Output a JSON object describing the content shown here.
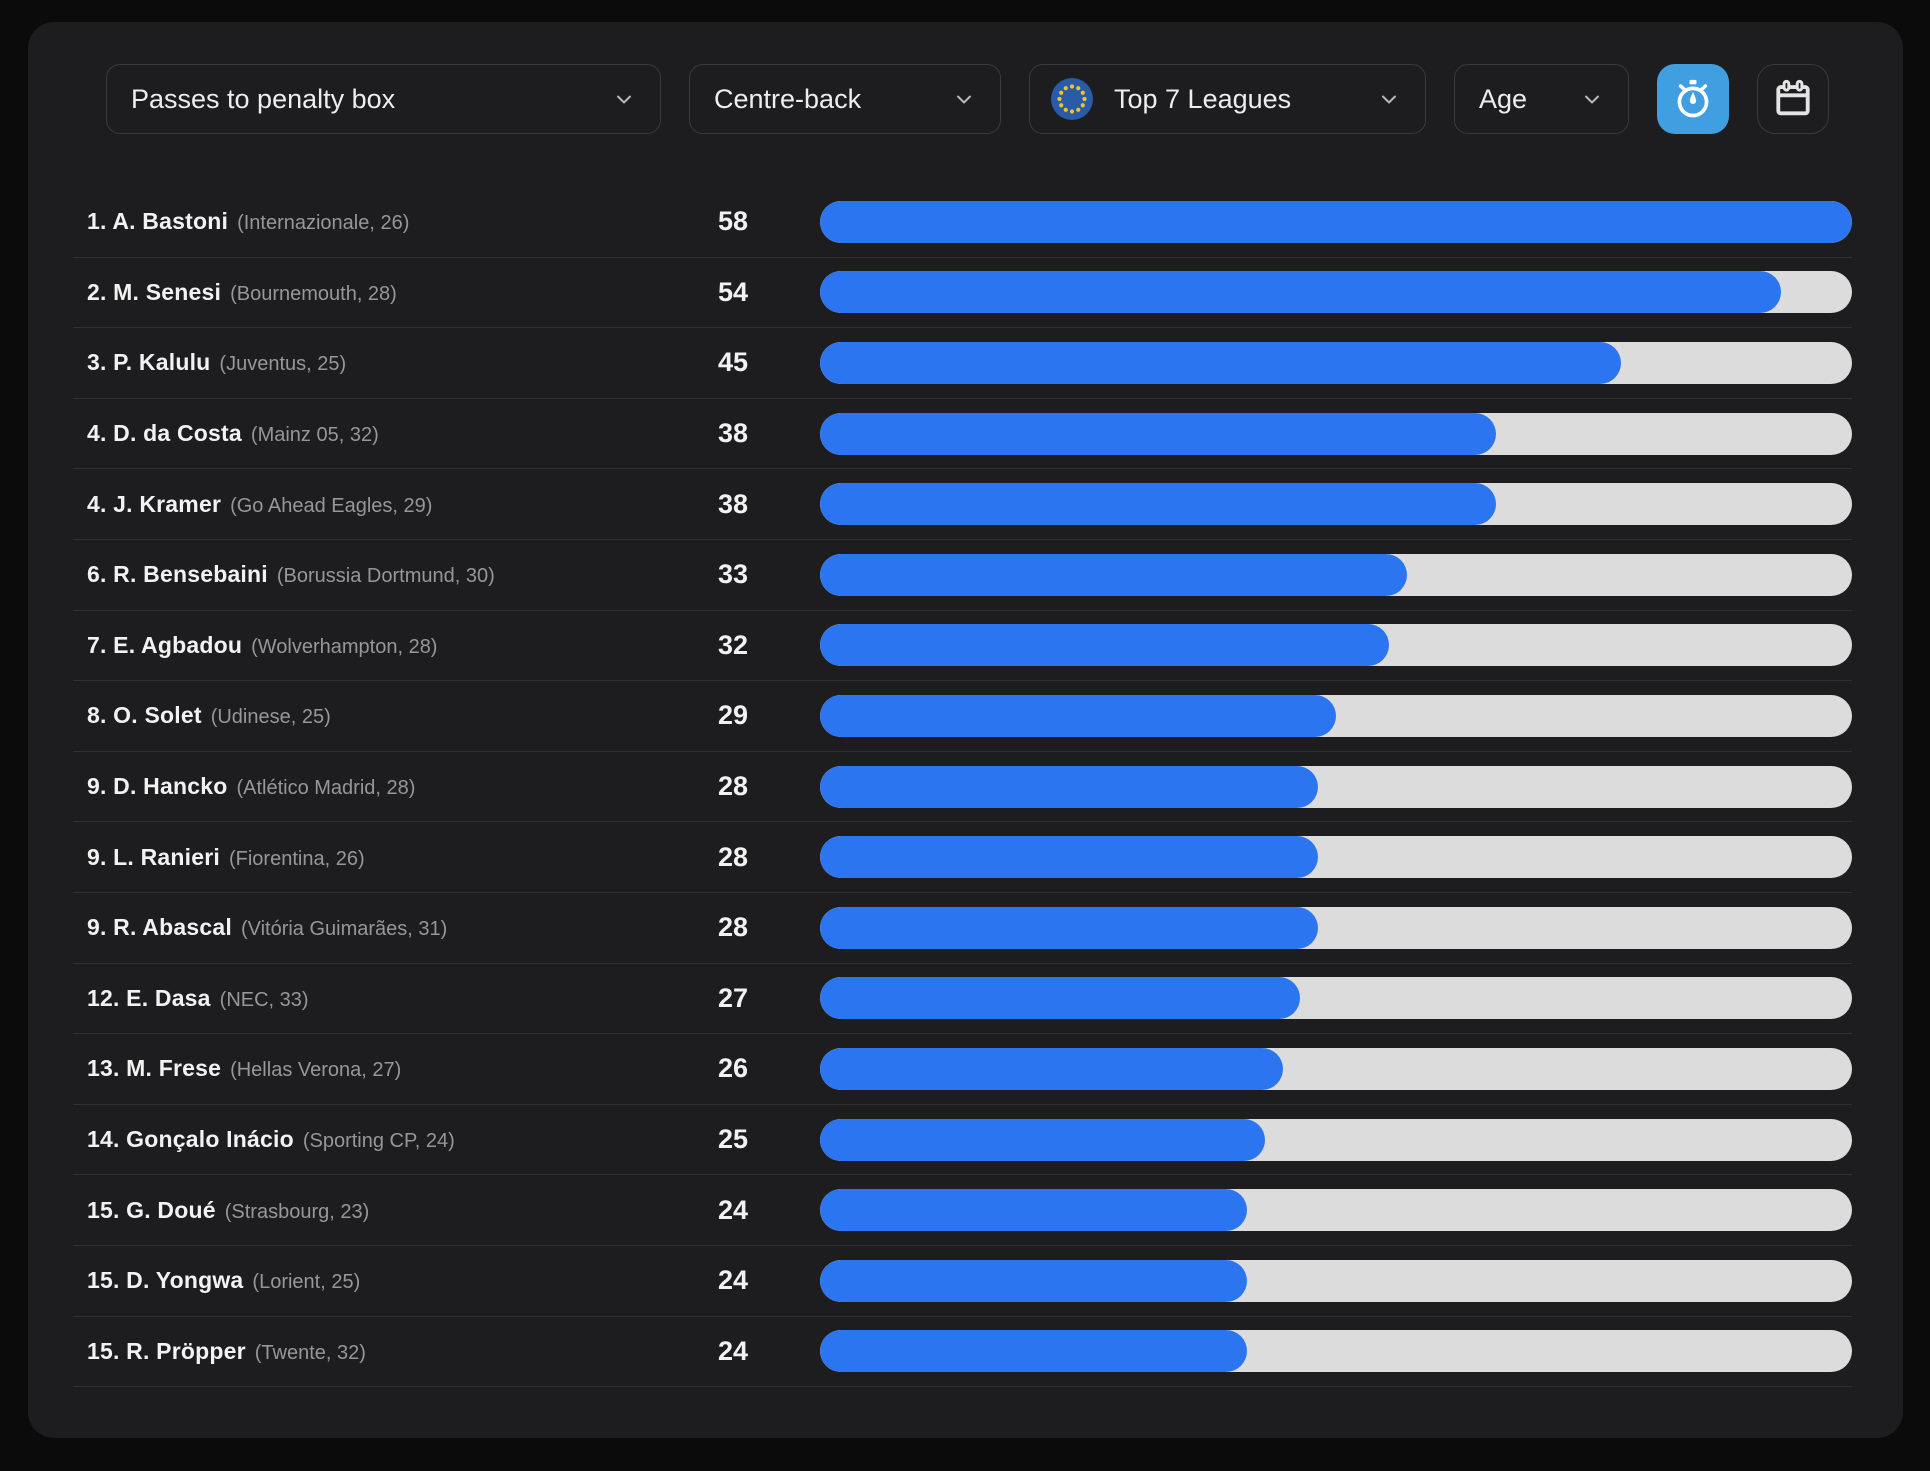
{
  "filters": {
    "metric_dropdown": {
      "value": "Passes to penalty box"
    },
    "position_dropdown": {
      "value": "Centre-back"
    },
    "league_dropdown": {
      "value": "Top 7 Leagues",
      "icon": "eu-flag-icon"
    },
    "age_dropdown": {
      "value": "Age"
    }
  },
  "toolbar": {
    "per90_toggle": {
      "icon": "stopwatch-icon",
      "active": true
    },
    "date_filter": {
      "icon": "calendar-icon",
      "active": false
    }
  },
  "colors": {
    "page_bg": "#0b0b0c",
    "card_bg": "#1d1d1f",
    "bar_fill": "#2b76f0",
    "bar_track": "#dcdcdc",
    "active_button": "#3f9fe0"
  },
  "chart_data": {
    "type": "bar",
    "orientation": "horizontal",
    "title": "Passes to penalty box — Centre-back — Top 7 Leagues",
    "max_value": 58,
    "rows": [
      {
        "rank": "1",
        "name": "A. Bastoni",
        "club": "Internazionale",
        "age": "26",
        "value": 58
      },
      {
        "rank": "2",
        "name": "M. Senesi",
        "club": "Bournemouth",
        "age": "28",
        "value": 54
      },
      {
        "rank": "3",
        "name": "P. Kalulu",
        "club": "Juventus",
        "age": "25",
        "value": 45
      },
      {
        "rank": "4",
        "name": "D. da Costa",
        "club": "Mainz 05",
        "age": "32",
        "value": 38
      },
      {
        "rank": "4",
        "name": "J. Kramer",
        "club": "Go Ahead Eagles",
        "age": "29",
        "value": 38
      },
      {
        "rank": "6",
        "name": "R. Bensebaini",
        "club": "Borussia Dortmund",
        "age": "30",
        "value": 33
      },
      {
        "rank": "7",
        "name": "E. Agbadou",
        "club": "Wolverhampton",
        "age": "28",
        "value": 32
      },
      {
        "rank": "8",
        "name": "O. Solet",
        "club": "Udinese",
        "age": "25",
        "value": 29
      },
      {
        "rank": "9",
        "name": "D. Hancko",
        "club": "Atlético Madrid",
        "age": "28",
        "value": 28
      },
      {
        "rank": "9",
        "name": "L. Ranieri",
        "club": "Fiorentina",
        "age": "26",
        "value": 28
      },
      {
        "rank": "9",
        "name": "R. Abascal",
        "club": "Vitória Guimarães",
        "age": "31",
        "value": 28
      },
      {
        "rank": "12",
        "name": "E. Dasa",
        "club": "NEC",
        "age": "33",
        "value": 27
      },
      {
        "rank": "13",
        "name": "M. Frese",
        "club": "Hellas Verona",
        "age": "27",
        "value": 26
      },
      {
        "rank": "14",
        "name": "Gonçalo Inácio",
        "club": "Sporting CP",
        "age": "24",
        "value": 25
      },
      {
        "rank": "15",
        "name": "G. Doué",
        "club": "Strasbourg",
        "age": "23",
        "value": 24
      },
      {
        "rank": "15",
        "name": "D. Yongwa",
        "club": "Lorient",
        "age": "25",
        "value": 24
      },
      {
        "rank": "15",
        "name": "R. Pröpper",
        "club": "Twente",
        "age": "32",
        "value": 24
      }
    ]
  }
}
